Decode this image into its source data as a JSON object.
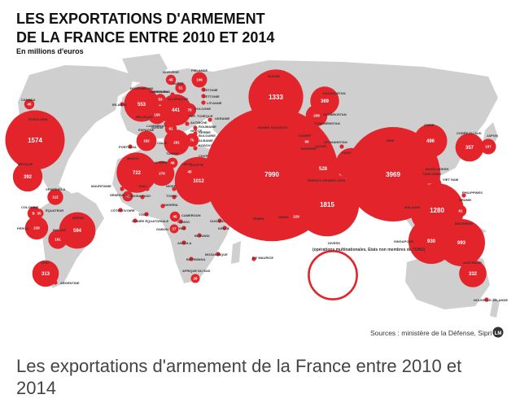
{
  "title_lines": [
    "LES EXPORTATIONS D'ARMEMENT",
    "DE LA FRANCE ENTRE 2010 ET 2014"
  ],
  "subtitle": "En millions d'euros",
  "source": "Sources : ministère de la Défense, Sipri",
  "logo": "LM",
  "caption": "Les exportations d'armement de la France entre 2010 et 2014",
  "colors": {
    "bubble": "#e3242b",
    "land": "#cfcfcf",
    "sea": "#ffffff",
    "text": "#111111"
  },
  "divers_note": "(opérations multinationales, Etats non membres de l'ONU)",
  "exports": [
    {
      "country": "CANADA",
      "value": "45"
    },
    {
      "country": "ÉTATS-UNIS",
      "value": "1574"
    },
    {
      "country": "MEXIQUE",
      "value": "392"
    },
    {
      "country": "VENEZUELA",
      "value": "112"
    },
    {
      "country": "COLOMBIE",
      "value": "80"
    },
    {
      "country": "ÉQUATEUR",
      "value": "35"
    },
    {
      "country": "PÉROU",
      "value": "239"
    },
    {
      "country": "BRÉSIL",
      "value": "594"
    },
    {
      "country": "BOLIVIE",
      "value": "161"
    },
    {
      "country": "CHILI",
      "value": "313"
    },
    {
      "country": "ARGENTINE",
      "value": ""
    },
    {
      "country": "ROYAUME-UNI",
      "value": "553"
    },
    {
      "country": "IRLANDE",
      "value": ""
    },
    {
      "country": "PAYS-BAS",
      "value": "53"
    },
    {
      "country": "BELGIQUE",
      "value": "156"
    },
    {
      "country": "ALLEMAGNE",
      "value": "441"
    },
    {
      "country": "LUXEMBOURG",
      "value": ""
    },
    {
      "country": "NORVÈGE",
      "value": "45"
    },
    {
      "country": "SUÈDE",
      "value": "51"
    },
    {
      "country": "DANEMARK",
      "value": ""
    },
    {
      "country": "FINLANDE",
      "value": "106"
    },
    {
      "country": "ESTONIE",
      "value": ""
    },
    {
      "country": "LETTONIE",
      "value": ""
    },
    {
      "country": "LITUANIE",
      "value": ""
    },
    {
      "country": "POLOGNE",
      "value": "78"
    },
    {
      "country": "RÉP. TCHÈQUE",
      "value": ""
    },
    {
      "country": "AUTRICHE",
      "value": ""
    },
    {
      "country": "UKRAINE",
      "value": ""
    },
    {
      "country": "SUISSE",
      "value": "61"
    },
    {
      "country": "ROUMANIE",
      "value": ""
    },
    {
      "country": "ESPAGNE",
      "value": "182"
    },
    {
      "country": "PORTUGAL",
      "value": ""
    },
    {
      "country": "ITALIE",
      "value": "291"
    },
    {
      "country": "GRÈCE",
      "value": "79"
    },
    {
      "country": "SERBIE",
      "value": ""
    },
    {
      "country": "BULGARIE",
      "value": ""
    },
    {
      "country": "ALBANIE",
      "value": ""
    },
    {
      "country": "KOSOVO",
      "value": ""
    },
    {
      "country": "TURQUIE",
      "value": "284"
    },
    {
      "country": "CHYPRE",
      "value": ""
    },
    {
      "country": "LIBAN",
      "value": ""
    },
    {
      "country": "ISRAËL",
      "value": ""
    },
    {
      "country": "JORDANIE",
      "value": "95"
    },
    {
      "country": "ÉGYPTE",
      "value": "1012"
    },
    {
      "country": "MAROC",
      "value": "722"
    },
    {
      "country": "ALGÉRIE",
      "value": "276"
    },
    {
      "country": "TUNISIE",
      "value": "48"
    },
    {
      "country": "LIBYE",
      "value": "45"
    },
    {
      "country": "MAURITANIE",
      "value": ""
    },
    {
      "country": "MALI",
      "value": ""
    },
    {
      "country": "NIGER",
      "value": ""
    },
    {
      "country": "SÉNÉGAL",
      "value": "49"
    },
    {
      "country": "BURKINA FASO",
      "value": ""
    },
    {
      "country": "TCHAD",
      "value": ""
    },
    {
      "country": "CÔTE D'IVOIRE",
      "value": ""
    },
    {
      "country": "NIGERIA",
      "value": ""
    },
    {
      "country": "TOGO",
      "value": ""
    },
    {
      "country": "CAMEROUN",
      "value": "45"
    },
    {
      "country": "GUINÉE ÉQUATORIALE",
      "value": ""
    },
    {
      "country": "GABON",
      "value": "27"
    },
    {
      "country": "CONGO",
      "value": ""
    },
    {
      "country": "RDC",
      "value": ""
    },
    {
      "country": "OUGANDA",
      "value": ""
    },
    {
      "country": "KENYA",
      "value": ""
    },
    {
      "country": "BURUNDI",
      "value": ""
    },
    {
      "country": "ÉTHIOPIE",
      "value": ""
    },
    {
      "country": "ANGOLA",
      "value": ""
    },
    {
      "country": "BOTSWANA",
      "value": ""
    },
    {
      "country": "MOZAMBIQUE",
      "value": ""
    },
    {
      "country": "AFRIQUE DU SUD",
      "value": "28"
    },
    {
      "country": "ÎLE MAURICE",
      "value": ""
    },
    {
      "country": "IRAK",
      "value": ""
    },
    {
      "country": "ARABIE SAOUDITE",
      "value": "7990"
    },
    {
      "country": "KOWEÏT",
      "value": "96"
    },
    {
      "country": "BAHREÏN",
      "value": ""
    },
    {
      "country": "QATAR",
      "value": "528"
    },
    {
      "country": "ÉMIRATS ARABES UNIS",
      "value": "1815"
    },
    {
      "country": "OMAN",
      "value": "229"
    },
    {
      "country": "YÉMEN",
      "value": ""
    },
    {
      "country": "RUSSIE",
      "value": "1333"
    },
    {
      "country": "KAZAKHSTAN",
      "value": "369"
    },
    {
      "country": "OUZBÉKISTAN",
      "value": "208"
    },
    {
      "country": "TURKMÉNISTAN",
      "value": ""
    },
    {
      "country": "AFGHANISTAN",
      "value": ""
    },
    {
      "country": "PAKISTAN",
      "value": "439"
    },
    {
      "country": "INDE",
      "value": "3969"
    },
    {
      "country": "CHINE",
      "value": "496"
    },
    {
      "country": "CORÉE DU SUD",
      "value": "357"
    },
    {
      "country": "JAPON",
      "value": "107"
    },
    {
      "country": "BANGLADESH",
      "value": ""
    },
    {
      "country": "THAÏLANDE",
      "value": "211"
    },
    {
      "country": "VIET NAM",
      "value": "65"
    },
    {
      "country": "PHILIPPINES",
      "value": ""
    },
    {
      "country": "MALAISIE",
      "value": "1280"
    },
    {
      "country": "BRUNEI",
      "value": "61"
    },
    {
      "country": "SINGAPOUR",
      "value": "930"
    },
    {
      "country": "INDONÉSIE",
      "value": "993"
    },
    {
      "country": "AUSTRALIE",
      "value": "332"
    },
    {
      "country": "NOUVELLE-ZÉLANDE",
      "value": ""
    },
    {
      "country": "DIVERS",
      "value": "1032"
    }
  ]
}
